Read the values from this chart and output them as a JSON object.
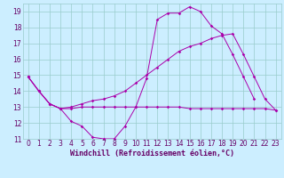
{
  "background_color": "#cceeff",
  "grid_color": "#99cccc",
  "line_color": "#aa00aa",
  "xlabel": "Windchill (Refroidissement éolien,°C)",
  "xlabel_color": "#660066",
  "xlim": [
    -0.5,
    23.5
  ],
  "ylim": [
    11,
    19.5
  ],
  "yticks": [
    11,
    12,
    13,
    14,
    15,
    16,
    17,
    18,
    19
  ],
  "xticks": [
    0,
    1,
    2,
    3,
    4,
    5,
    6,
    7,
    8,
    9,
    10,
    11,
    12,
    13,
    14,
    15,
    16,
    17,
    18,
    19,
    20,
    21,
    22,
    23
  ],
  "line1_x": [
    0,
    1,
    2,
    3,
    4,
    5,
    6,
    7,
    8,
    9,
    10,
    11,
    12,
    13,
    14,
    15,
    16,
    17,
    18,
    19,
    20,
    21
  ],
  "line1_y": [
    14.9,
    14.0,
    13.2,
    12.9,
    12.1,
    11.8,
    11.1,
    11.0,
    11.0,
    11.8,
    13.0,
    14.8,
    18.5,
    18.9,
    18.9,
    19.3,
    19.0,
    18.1,
    17.6,
    16.3,
    14.9,
    13.5
  ],
  "line2_x": [
    0,
    1,
    2,
    3,
    4,
    5,
    6,
    7,
    8,
    9,
    10,
    11,
    12,
    13,
    14,
    15,
    16,
    17,
    18,
    19,
    20,
    21,
    22,
    23
  ],
  "line2_y": [
    14.9,
    14.0,
    13.2,
    12.9,
    12.9,
    13.0,
    13.0,
    13.0,
    13.0,
    13.0,
    13.0,
    13.0,
    13.0,
    13.0,
    13.0,
    12.9,
    12.9,
    12.9,
    12.9,
    12.9,
    12.9,
    12.9,
    12.9,
    12.8
  ],
  "line3_x": [
    0,
    1,
    2,
    3,
    4,
    5,
    6,
    7,
    8,
    9,
    10,
    11,
    12,
    13,
    14,
    15,
    16,
    17,
    18,
    19,
    20,
    21,
    22,
    23
  ],
  "line3_y": [
    14.9,
    14.0,
    13.2,
    12.9,
    13.0,
    13.2,
    13.4,
    13.5,
    13.7,
    14.0,
    14.5,
    15.0,
    15.5,
    16.0,
    16.5,
    16.8,
    17.0,
    17.3,
    17.5,
    17.6,
    16.3,
    14.9,
    13.5,
    12.8
  ],
  "tick_fontsize": 5.5,
  "label_fontsize": 6.0,
  "linewidth": 0.7,
  "markersize": 1.8
}
